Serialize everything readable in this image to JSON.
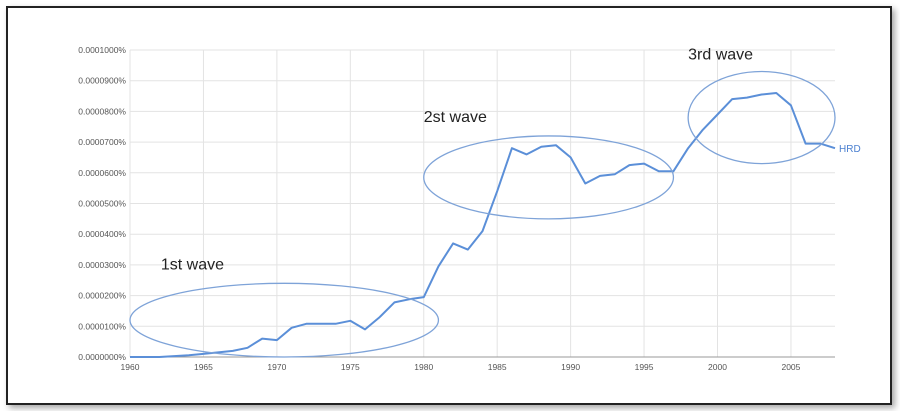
{
  "chart_data": {
    "type": "line",
    "title": "",
    "xlabel": "",
    "ylabel": "",
    "xlim": [
      1960,
      2008
    ],
    "ylim": [
      0,
      1e-06
    ],
    "grid": true,
    "x_ticks": [
      "1960",
      "1965",
      "1970",
      "1975",
      "1980",
      "1985",
      "1990",
      "1995",
      "2000",
      "2005"
    ],
    "y_ticks": [
      "0.0000000%",
      "0.0000100%",
      "0.0000200%",
      "0.0000300%",
      "0.0000400%",
      "0.0000500%",
      "0.0000600%",
      "0.0000700%",
      "0.0000800%",
      "0.0000900%",
      "0.0001000%"
    ],
    "series": [
      {
        "name": "HRD",
        "color": "#5b8fd8",
        "x": [
          1960,
          1962,
          1963,
          1964,
          1965,
          1966,
          1967,
          1968,
          1969,
          1970,
          1971,
          1972,
          1973,
          1974,
          1975,
          1976,
          1977,
          1978,
          1979,
          1980,
          1981,
          1982,
          1983,
          1984,
          1985,
          1986,
          1987,
          1988,
          1989,
          1990,
          1991,
          1992,
          1993,
          1994,
          1995,
          1996,
          1997,
          1998,
          1999,
          2000,
          2001,
          2002,
          2003,
          2004,
          2005,
          2006,
          2007,
          2008
        ],
        "values": [
          0,
          0,
          3e-09,
          6e-09,
          1e-08,
          1.5e-08,
          2e-08,
          3e-08,
          6e-08,
          5.5e-08,
          9.5e-08,
          1.08e-07,
          1.08e-07,
          1.08e-07,
          1.18e-07,
          9e-08,
          1.3e-07,
          1.78e-07,
          1.88e-07,
          1.95e-07,
          2.95e-07,
          3.7e-07,
          3.5e-07,
          4.1e-07,
          5.4e-07,
          6.8e-07,
          6.6e-07,
          6.85e-07,
          6.9e-07,
          6.5e-07,
          5.65e-07,
          5.9e-07,
          5.95e-07,
          6.25e-07,
          6.3e-07,
          6.05e-07,
          6.05e-07,
          6.8e-07,
          7.4e-07,
          7.9e-07,
          8.4e-07,
          8.45e-07,
          8.55e-07,
          8.6e-07,
          8.2e-07,
          6.95e-07,
          6.95e-07,
          6.8e-07
        ]
      }
    ],
    "annotations": [
      {
        "text": "1st wave",
        "x_range": [
          1960,
          1981
        ],
        "y_range": [
          0,
          2.4e-07
        ]
      },
      {
        "text": "2st wave",
        "x_range": [
          1980,
          1997
        ],
        "y_range": [
          4.5e-07,
          7.2e-07
        ]
      },
      {
        "text": "3rd wave",
        "x_range": [
          1998,
          2008
        ],
        "y_range": [
          6.3e-07,
          9.3e-07
        ]
      }
    ]
  }
}
